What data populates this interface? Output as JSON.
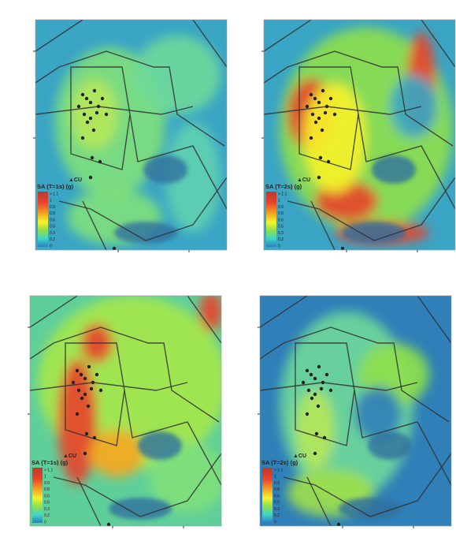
{
  "panels": [
    {
      "site": "▲CU",
      "legend_title": "SA (T=1s) (g)",
      "legend_labels": [
        "> 1.1",
        "1",
        "0.9",
        "0.8",
        "0.6",
        "0.5",
        "0.3",
        "0.2",
        "0"
      ]
    },
    {
      "site": "▲CU",
      "legend_title": "SA (T=2s) (g)",
      "legend_labels": [
        "> 1.1",
        "1",
        "0.9",
        "0.8",
        "0.6",
        "0.5",
        "0.3",
        "0.2",
        "0"
      ]
    },
    {
      "site": "▲CU",
      "legend_title": "SA (T=1s) (g)",
      "legend_labels": [
        "> 1.1",
        "1",
        "0.9",
        "0.8",
        "0.6",
        "0.5",
        "0.3",
        "0.2",
        "0"
      ]
    },
    {
      "site": "▲CU",
      "legend_title": "SA (T=2s) (g)",
      "legend_labels": [
        "> 1.1",
        "1",
        "0.9",
        "0.8",
        "0.6",
        "0.5",
        "0.3",
        "0.2",
        "0"
      ]
    }
  ]
}
